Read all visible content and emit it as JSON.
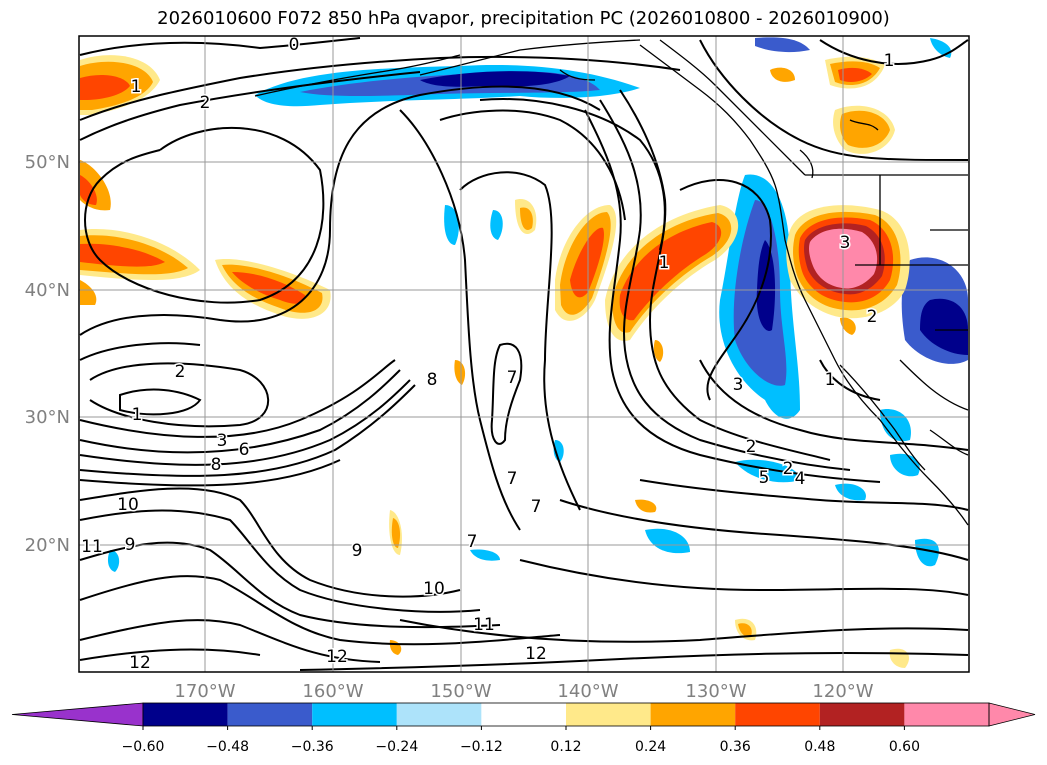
{
  "chart_data": {
    "type": "contour-map",
    "title": "2026010600 F072 850 hPa qvapor, precipitation PC (2026010800 - 2026010900)",
    "lat_labels": [
      "20°N",
      "30°N",
      "40°N",
      "50°N"
    ],
    "lon_labels": [
      "170°W",
      "160°W",
      "150°W",
      "140°W",
      "130°W",
      "120°W"
    ],
    "colorbar": {
      "levels": [
        -0.6,
        -0.48,
        -0.36,
        -0.24,
        -0.12,
        0.12,
        0.24,
        0.36,
        0.48,
        0.6
      ],
      "tick_labels": [
        "−0.60",
        "−0.48",
        "−0.36",
        "−0.24",
        "−0.12",
        "0.12",
        "0.24",
        "0.36",
        "0.48",
        "0.60"
      ],
      "colors": [
        "#9932CC",
        "#00008B",
        "#3A5BCC",
        "#00BFFF",
        "#ADE3FA",
        "#FFFFFF",
        "#FFE98A",
        "#FFA500",
        "#FF4500",
        "#B22222",
        "#FF88AA"
      ],
      "extend": "both"
    },
    "contour_labels": [
      "0",
      "1",
      "1",
      "1",
      "1",
      "1",
      "2",
      "2",
      "2",
      "2",
      "3",
      "3",
      "3",
      "5",
      "6",
      "8",
      "8",
      "9",
      "9",
      "10",
      "10",
      "11",
      "11",
      "12",
      "12",
      "12",
      "7",
      "7",
      "7",
      "7",
      "4",
      "2"
    ]
  }
}
